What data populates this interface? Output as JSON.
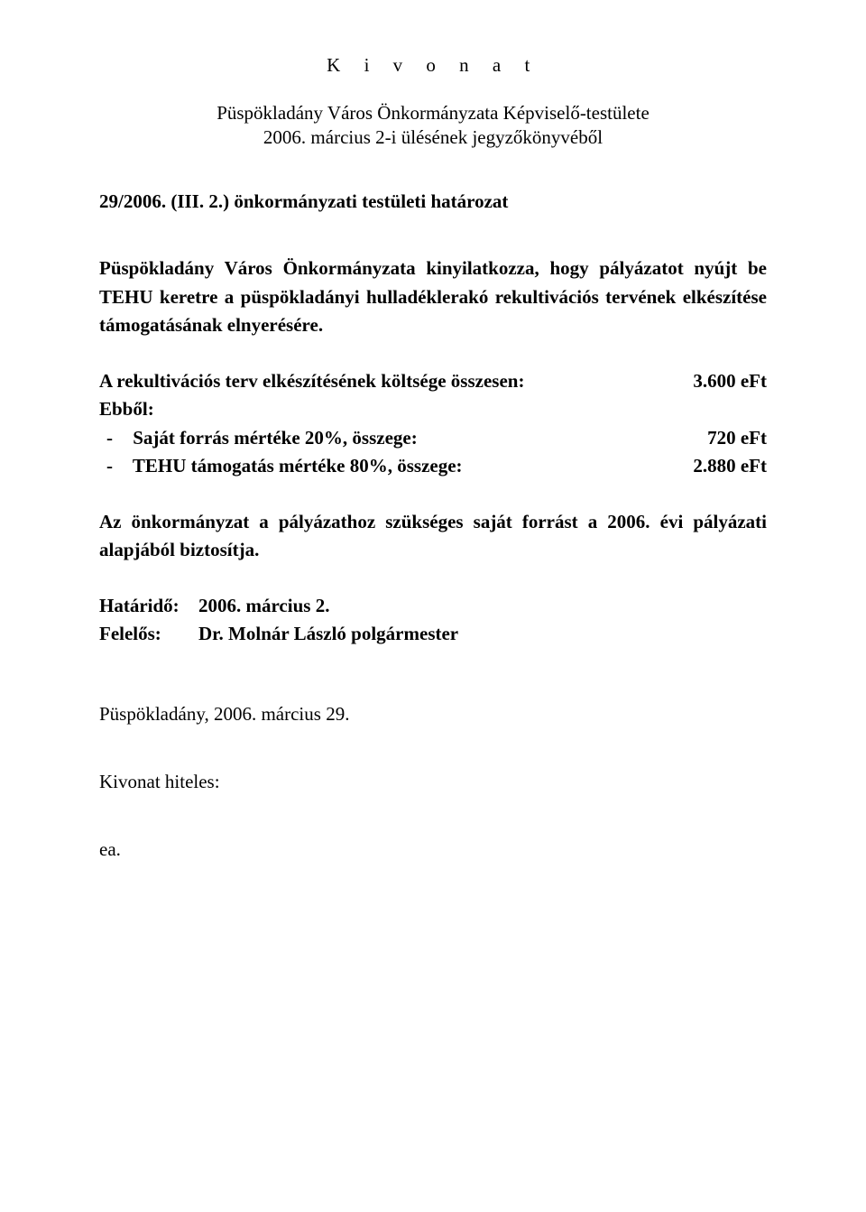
{
  "header": {
    "title": "K i v o n a t",
    "source_line1": "Püspökladány Város Önkormányzata Képviselő-testülete",
    "source_line2": "2006. március 2-i ülésének jegyzőkönyvéből"
  },
  "resolution": {
    "number": "29/2006. (III. 2.) önkormányzati testületi határozat",
    "body": "Püspökladány Város Önkormányzata kinyilatkozza, hogy pályázatot nyújt be TEHU keretre a püspökladányi hulladéklerakó rekultivációs tervének elkészítése támogatásának elnyerésére."
  },
  "costs": {
    "total_label": "A rekultivációs terv elkészítésének költsége összesen:",
    "total_value": "3.600 eFt",
    "ebbol": "Ebből:",
    "item1_label": "Saját forrás mértéke 20%, összege:",
    "item1_value": "720 eFt",
    "item2_label": "TEHU támogatás mértéke 80%, összege:",
    "item2_value": "2.880 eFt"
  },
  "funding": "Az önkormányzat a pályázathoz szükséges saját forrást a 2006. évi pályázati alapjából biztosítja.",
  "deadline": {
    "label": "Határidő:",
    "value": "2006. március 2."
  },
  "responsible": {
    "label": "Felelős:",
    "value": "Dr. Molnár László polgármester"
  },
  "footer": {
    "place_date": "Püspökladány, 2006. március 29.",
    "authentic": "Kivonat hiteles:",
    "ea": "ea."
  }
}
